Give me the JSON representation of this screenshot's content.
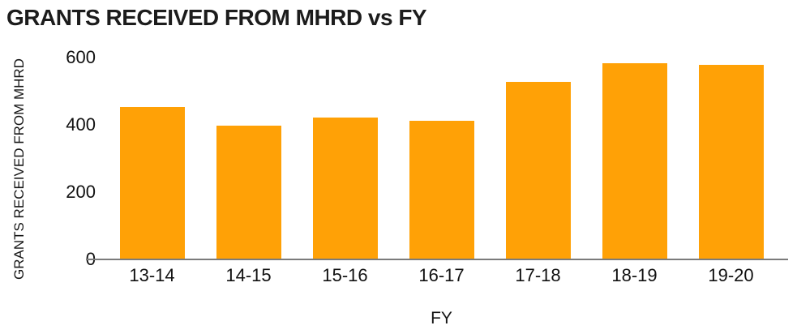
{
  "title": "GRANTS RECEIVED FROM MHRD vs FY",
  "colors": {
    "bar": "#FFA106",
    "axis_line": "#7B7B7B",
    "text": "#161616",
    "background": "#FFFFFF"
  },
  "chart_data": {
    "type": "bar",
    "title": "GRANTS RECEIVED FROM MHRD vs FY",
    "xlabel": "FY",
    "ylabel": "GRANTS RECEIVED FROM MHRD",
    "categories": [
      "13-14",
      "14-15",
      "15-16",
      "16-17",
      "17-18",
      "18-19",
      "19-20"
    ],
    "values": [
      450,
      395,
      420,
      410,
      525,
      580,
      575
    ],
    "yticks": [
      0,
      200,
      400,
      600
    ],
    "ylim": [
      0,
      600
    ],
    "grid": false,
    "legend": false,
    "bar_color": "#FFA106"
  }
}
